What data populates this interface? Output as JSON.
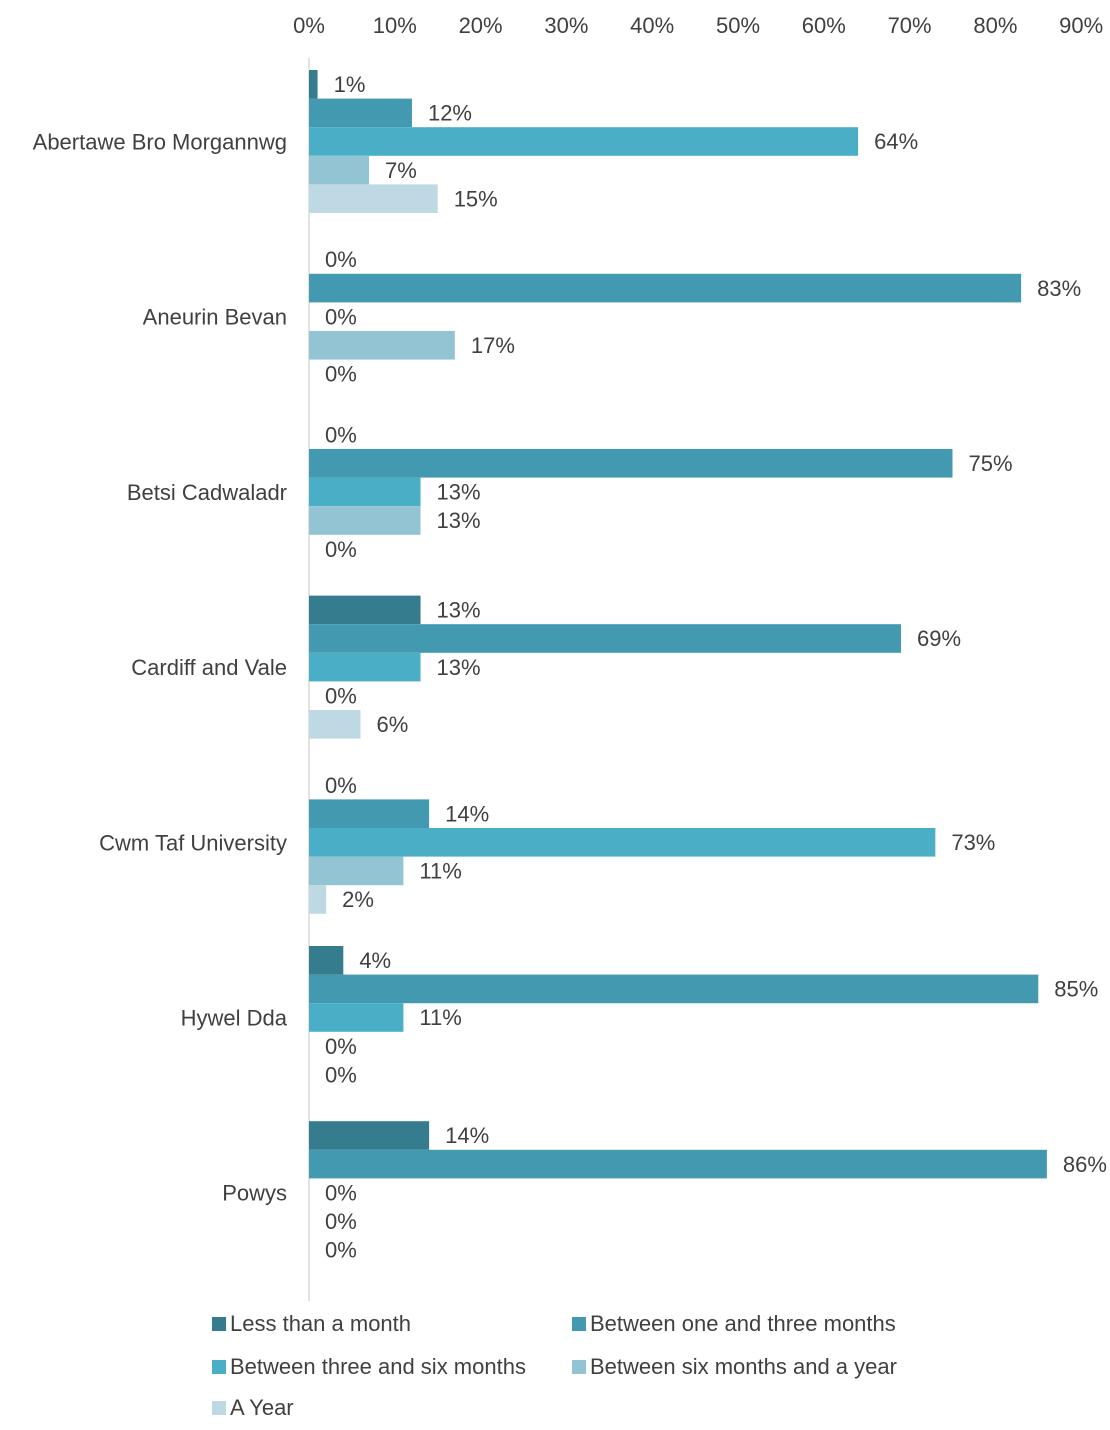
{
  "chart_data": {
    "type": "bar",
    "orientation": "horizontal",
    "title": "",
    "xlabel": "",
    "ylabel": "",
    "xlim": [
      0,
      90
    ],
    "x_ticks": [
      0,
      10,
      20,
      30,
      40,
      50,
      60,
      70,
      80,
      90
    ],
    "x_tick_labels": [
      "0%",
      "10%",
      "20%",
      "30%",
      "40%",
      "50%",
      "60%",
      "70%",
      "80%",
      "90%"
    ],
    "x_axis_position": "top",
    "grid": false,
    "legend_position": "bottom",
    "categories": [
      "Abertawe Bro Morgannwg",
      "Aneurin Bevan",
      "Betsi Cadwaladr",
      "Cardiff and Vale",
      "Cwm Taf University",
      "Hywel Dda",
      "Powys"
    ],
    "series": [
      {
        "name": "Less than a month",
        "color": "#357d8e",
        "values": [
          1,
          0,
          0,
          13,
          0,
          4,
          14
        ],
        "labels": [
          "1%",
          "0%",
          "0%",
          "13%",
          "0%",
          "4%",
          "14%"
        ]
      },
      {
        "name": "Between one and three months",
        "color": "#4299b0",
        "values": [
          12,
          83,
          75,
          69,
          14,
          85,
          86
        ],
        "labels": [
          "12%",
          "83%",
          "75%",
          "69%",
          "14%",
          "85%",
          "86%"
        ]
      },
      {
        "name": "Between three and six months",
        "color": "#4aaec7",
        "values": [
          64,
          0,
          13,
          13,
          73,
          11,
          0
        ],
        "labels": [
          "64%",
          "0%",
          "13%",
          "13%",
          "73%",
          "11%",
          "0%"
        ]
      },
      {
        "name": "Between six months and a year",
        "color": "#92c4d4",
        "values": [
          7,
          17,
          13,
          0,
          11,
          0,
          0
        ],
        "labels": [
          "7%",
          "17%",
          "13%",
          "0%",
          "11%",
          "0%",
          "0%"
        ]
      },
      {
        "name": "A Year",
        "color": "#bed9e3",
        "values": [
          15,
          0,
          0,
          6,
          2,
          0,
          0
        ],
        "labels": [
          "15%",
          "0%",
          "0%",
          "6%",
          "2%",
          "0%",
          "0%"
        ]
      }
    ],
    "style": {
      "text_color": "#404040",
      "axis_color": "#d9d9d9"
    }
  }
}
